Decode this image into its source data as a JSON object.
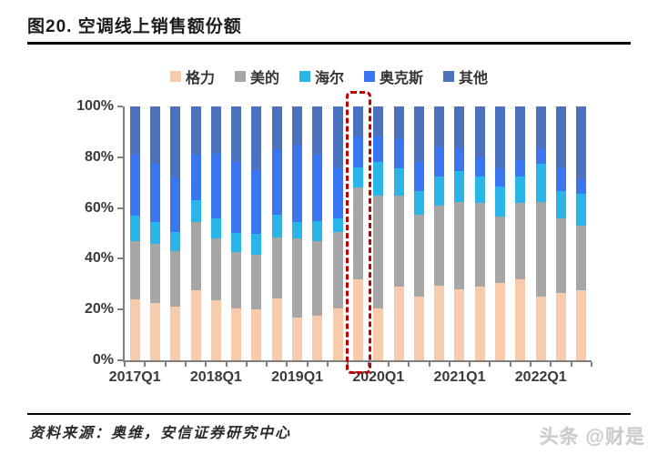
{
  "header": {
    "title": "图20. 空调线上销售额份额"
  },
  "footer": {
    "source": "资料来源：奥维，安信证券研究中心",
    "watermark": "头条 @财是"
  },
  "chart_data": {
    "type": "bar",
    "stacked": true,
    "percent_stacked": true,
    "title": "空调线上销售额份额",
    "xlabel": "",
    "ylabel": "",
    "ylim": [
      0,
      100
    ],
    "grid": false,
    "legend_position": "top",
    "y_tick_labels": [
      "0%",
      "20%",
      "40%",
      "60%",
      "80%",
      "100%"
    ],
    "x_tick_labels": [
      "2017Q1",
      "2018Q1",
      "2019Q1",
      "2020Q1",
      "2021Q1",
      "2022Q1"
    ],
    "categories": [
      "2017Q1",
      "2017Q2",
      "2017Q3",
      "2017Q4",
      "2018Q1",
      "2018Q2",
      "2018Q3",
      "2018Q4",
      "2019Q1",
      "2019Q2",
      "2019Q3",
      "2019Q4",
      "2020Q1",
      "2020Q2",
      "2020Q3",
      "2020Q4",
      "2021Q1",
      "2021Q2",
      "2021Q3",
      "2021Q4",
      "2022Q1",
      "2022Q2",
      "2022Q3"
    ],
    "series": [
      {
        "name": "格力",
        "color": "#F8CBAD",
        "values": [
          24,
          22.5,
          21,
          27.5,
          23.5,
          20.5,
          20,
          24.5,
          17,
          17.5,
          20.5,
          32,
          20.5,
          29,
          25,
          29.5,
          28,
          29,
          30.5,
          32,
          25,
          26.5,
          27.5
        ]
      },
      {
        "name": "美的",
        "color": "#A6A6A6",
        "values": [
          23,
          23.5,
          22,
          27,
          24.5,
          22,
          21.5,
          24,
          31,
          29.5,
          30,
          36,
          44.5,
          36,
          32.5,
          31.5,
          34.5,
          33,
          26,
          30,
          37.5,
          29.5,
          25.5
        ]
      },
      {
        "name": "海尔",
        "color": "#29B5E8",
        "values": [
          10,
          8.5,
          7.5,
          8.5,
          8,
          7.5,
          8.5,
          9,
          6.5,
          8,
          5.5,
          8,
          13,
          10.5,
          9,
          11.5,
          12,
          10.5,
          12,
          10.5,
          15,
          10.5,
          12.5
        ]
      },
      {
        "name": "奥克斯",
        "color": "#3A76F0",
        "values": [
          24,
          23,
          21.5,
          18,
          25.5,
          28,
          25,
          25.5,
          30.5,
          26,
          19.5,
          12,
          10,
          11.5,
          11.5,
          11.5,
          9,
          7.5,
          7,
          6.5,
          6,
          9,
          6
        ]
      },
      {
        "name": "其他",
        "color": "#4C72BE",
        "values": [
          19,
          22.5,
          28,
          19,
          18.5,
          22,
          25,
          17,
          15,
          19,
          24.5,
          12,
          12,
          13,
          22,
          16,
          16.5,
          20,
          24.5,
          21,
          16.5,
          24.5,
          28.5
        ]
      }
    ],
    "highlight": {
      "category": "2019Q4",
      "style": "red-dashed-box",
      "color": "#C00000"
    }
  }
}
